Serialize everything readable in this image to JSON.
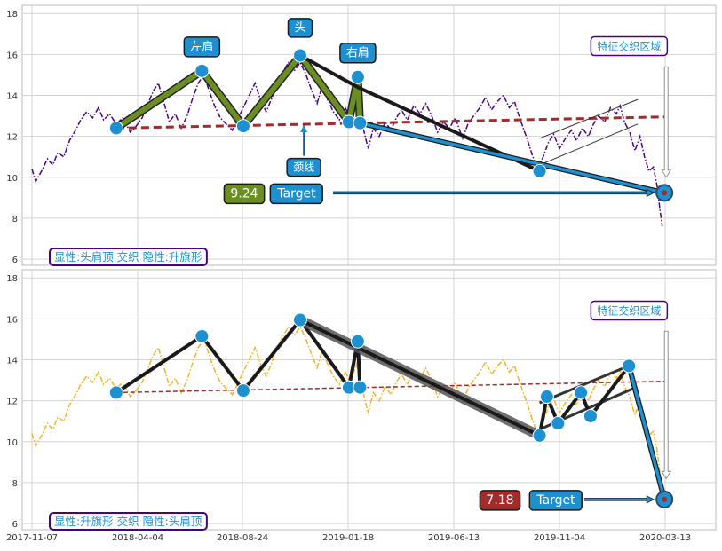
{
  "chart_data": [
    {
      "type": "line",
      "y_ticks": [
        6,
        8,
        10,
        12,
        14,
        16,
        18
      ],
      "ylim": [
        5.7,
        18.4
      ],
      "xlim": [
        "2017-11-07",
        "2020-03-28"
      ],
      "grid": true,
      "price_color": "#4B0082",
      "price_style": "dash-dot",
      "price_series": [
        {
          "x": "2017-11-07",
          "y": 10.4
        },
        {
          "x": "2017-11-12",
          "y": 9.8
        },
        {
          "x": "2017-11-20",
          "y": 10.3
        },
        {
          "x": "2017-11-28",
          "y": 10.9
        },
        {
          "x": "2017-12-05",
          "y": 10.6
        },
        {
          "x": "2017-12-12",
          "y": 11.2
        },
        {
          "x": "2017-12-20",
          "y": 11.0
        },
        {
          "x": "2017-12-28",
          "y": 11.8
        },
        {
          "x": "2018-01-05",
          "y": 12.3
        },
        {
          "x": "2018-01-12",
          "y": 12.8
        },
        {
          "x": "2018-01-20",
          "y": 13.2
        },
        {
          "x": "2018-01-28",
          "y": 12.9
        },
        {
          "x": "2018-02-05",
          "y": 13.4
        },
        {
          "x": "2018-02-12",
          "y": 12.8
        },
        {
          "x": "2018-02-20",
          "y": 13.1
        },
        {
          "x": "2018-03-01",
          "y": 12.6
        },
        {
          "x": "2018-03-10",
          "y": 12.9
        },
        {
          "x": "2018-03-20",
          "y": 12.2
        },
        {
          "x": "2018-03-28",
          "y": 12.5
        },
        {
          "x": "2018-04-05",
          "y": 12.9
        },
        {
          "x": "2018-04-12",
          "y": 13.5
        },
        {
          "x": "2018-04-20",
          "y": 14.2
        },
        {
          "x": "2018-04-27",
          "y": 14.6
        },
        {
          "x": "2018-05-05",
          "y": 13.6
        },
        {
          "x": "2018-05-12",
          "y": 12.7
        },
        {
          "x": "2018-05-20",
          "y": 13.1
        },
        {
          "x": "2018-05-28",
          "y": 12.4
        },
        {
          "x": "2018-06-05",
          "y": 13.0
        },
        {
          "x": "2018-06-12",
          "y": 13.8
        },
        {
          "x": "2018-06-20",
          "y": 14.6
        },
        {
          "x": "2018-06-28",
          "y": 15.0
        },
        {
          "x": "2018-07-05",
          "y": 14.2
        },
        {
          "x": "2018-07-12",
          "y": 13.5
        },
        {
          "x": "2018-07-20",
          "y": 12.9
        },
        {
          "x": "2018-07-28",
          "y": 12.6
        },
        {
          "x": "2018-08-05",
          "y": 12.3
        },
        {
          "x": "2018-08-12",
          "y": 12.8
        },
        {
          "x": "2018-08-20",
          "y": 13.4
        },
        {
          "x": "2018-08-28",
          "y": 14.0
        },
        {
          "x": "2018-09-05",
          "y": 14.6
        },
        {
          "x": "2018-09-12",
          "y": 13.8
        },
        {
          "x": "2018-09-20",
          "y": 13.2
        },
        {
          "x": "2018-09-28",
          "y": 13.9
        },
        {
          "x": "2018-10-05",
          "y": 14.6
        },
        {
          "x": "2018-10-12",
          "y": 15.1
        },
        {
          "x": "2018-10-20",
          "y": 15.6
        },
        {
          "x": "2018-10-28",
          "y": 15.2
        },
        {
          "x": "2018-11-05",
          "y": 15.6
        },
        {
          "x": "2018-11-12",
          "y": 15.1
        },
        {
          "x": "2018-11-20",
          "y": 14.3
        },
        {
          "x": "2018-11-28",
          "y": 13.6
        },
        {
          "x": "2018-12-05",
          "y": 14.5
        },
        {
          "x": "2018-12-12",
          "y": 13.8
        },
        {
          "x": "2018-12-20",
          "y": 13.2
        },
        {
          "x": "2018-12-28",
          "y": 12.8
        },
        {
          "x": "2019-01-05",
          "y": 13.4
        },
        {
          "x": "2019-01-12",
          "y": 12.9
        },
        {
          "x": "2019-01-20",
          "y": 13.8
        },
        {
          "x": "2019-01-28",
          "y": 12.6
        },
        {
          "x": "2019-02-05",
          "y": 11.4
        },
        {
          "x": "2019-02-12",
          "y": 12.4
        },
        {
          "x": "2019-02-20",
          "y": 12.0
        },
        {
          "x": "2019-02-28",
          "y": 12.7
        },
        {
          "x": "2019-03-08",
          "y": 12.3
        },
        {
          "x": "2019-03-15",
          "y": 12.9
        },
        {
          "x": "2019-03-22",
          "y": 13.3
        },
        {
          "x": "2019-03-30",
          "y": 12.8
        },
        {
          "x": "2019-04-08",
          "y": 13.5
        },
        {
          "x": "2019-04-16",
          "y": 13.1
        },
        {
          "x": "2019-04-24",
          "y": 13.6
        },
        {
          "x": "2019-05-02",
          "y": 13.0
        },
        {
          "x": "2019-05-10",
          "y": 12.2
        },
        {
          "x": "2019-05-18",
          "y": 12.7
        },
        {
          "x": "2019-05-26",
          "y": 12.4
        },
        {
          "x": "2019-06-03",
          "y": 12.9
        },
        {
          "x": "2019-06-13",
          "y": 11.9
        },
        {
          "x": "2019-06-20",
          "y": 12.6
        },
        {
          "x": "2019-06-28",
          "y": 13.0
        },
        {
          "x": "2019-07-06",
          "y": 13.4
        },
        {
          "x": "2019-07-14",
          "y": 13.9
        },
        {
          "x": "2019-07-22",
          "y": 13.3
        },
        {
          "x": "2019-07-30",
          "y": 13.7
        },
        {
          "x": "2019-08-07",
          "y": 14.0
        },
        {
          "x": "2019-08-15",
          "y": 13.4
        },
        {
          "x": "2019-08-22",
          "y": 13.7
        },
        {
          "x": "2019-08-30",
          "y": 12.8
        },
        {
          "x": "2019-09-07",
          "y": 12.0
        },
        {
          "x": "2019-09-15",
          "y": 11.1
        },
        {
          "x": "2019-09-22",
          "y": 10.4
        },
        {
          "x": "2019-09-30",
          "y": 11.0
        },
        {
          "x": "2019-10-07",
          "y": 11.7
        },
        {
          "x": "2019-10-14",
          "y": 12.1
        },
        {
          "x": "2019-10-22",
          "y": 11.4
        },
        {
          "x": "2019-10-30",
          "y": 11.9
        },
        {
          "x": "2019-11-07",
          "y": 12.3
        },
        {
          "x": "2019-11-14",
          "y": 11.8
        },
        {
          "x": "2019-11-22",
          "y": 12.4
        },
        {
          "x": "2019-11-30",
          "y": 12.0
        },
        {
          "x": "2019-12-07",
          "y": 12.6
        },
        {
          "x": "2019-12-14",
          "y": 13.0
        },
        {
          "x": "2019-12-22",
          "y": 12.7
        },
        {
          "x": "2019-12-30",
          "y": 13.4
        },
        {
          "x": "2020-01-07",
          "y": 13.1
        },
        {
          "x": "2020-01-12",
          "y": 13.5
        },
        {
          "x": "2020-01-18",
          "y": 12.7
        },
        {
          "x": "2020-01-25",
          "y": 12.2
        },
        {
          "x": "2020-02-01",
          "y": 11.3
        },
        {
          "x": "2020-02-08",
          "y": 12.0
        },
        {
          "x": "2020-02-14",
          "y": 11.0
        },
        {
          "x": "2020-02-20",
          "y": 10.3
        },
        {
          "x": "2020-02-26",
          "y": 10.5
        },
        {
          "x": "2020-03-02",
          "y": 9.6
        },
        {
          "x": "2020-03-06",
          "y": 8.4
        },
        {
          "x": "2020-03-09",
          "y": 7.6
        }
      ],
      "neckline": {
        "color": "#A52A2A",
        "points": [
          {
            "x": "2018-03-01",
            "y": 12.4
          },
          {
            "x": "2020-03-12",
            "y": 12.95
          }
        ]
      },
      "pattern_points": [
        {
          "x": "2018-03-01",
          "y": 12.4
        },
        {
          "x": "2018-06-25",
          "y": 15.2
        },
        {
          "x": "2018-08-20",
          "y": 12.5
        },
        {
          "x": "2018-11-05",
          "y": 15.95
        },
        {
          "x": "2019-01-10",
          "y": 12.7
        },
        {
          "x": "2019-01-22",
          "y": 14.9
        },
        {
          "x": "2019-01-25",
          "y": 12.65
        }
      ],
      "pattern_color": "#6B8E23",
      "black_segments": [
        {
          "from": {
            "x": "2018-11-05",
            "y": 15.95
          },
          "to": {
            "x": "2019-01-22",
            "y": 14.4
          }
        },
        {
          "from": {
            "x": "2019-01-22",
            "y": 14.4
          },
          "to": {
            "x": "2019-09-25",
            "y": 10.3
          }
        }
      ],
      "flag_channel": [
        {
          "from": {
            "x": "2019-09-25",
            "y": 10.6
          },
          "to": {
            "x": "2020-02-05",
            "y": 12.6
          }
        },
        {
          "from": {
            "x": "2019-09-25",
            "y": 11.9
          },
          "to": {
            "x": "2020-02-05",
            "y": 13.8
          }
        }
      ],
      "extra_markers": [
        {
          "x": "2019-09-25",
          "y": 10.3
        }
      ],
      "projection": {
        "color": "#1E90D0",
        "from": {
          "x": "2019-01-25",
          "y": 12.65
        },
        "to": {
          "x": "2020-03-12",
          "y": 9.24
        }
      },
      "target_marker": {
        "x": "2020-03-12",
        "y": 9.24
      },
      "labels": {
        "left_shoulder": {
          "x": "2018-06-25",
          "y": 16.4,
          "text": "左肩"
        },
        "head": {
          "x": "2018-11-05",
          "y": 17.35,
          "text": "头"
        },
        "right_shoulder": {
          "x": "2019-01-22",
          "y": 16.1,
          "text": "右肩"
        },
        "neckline": {
          "x": "2018-11-10",
          "y": 10.5,
          "text": "颈线"
        },
        "zone": {
          "x": "2020-02-10",
          "y": 16.4,
          "text": "特征交织区域"
        }
      },
      "target_value": "9.24",
      "target_value_color": "#6B8E23",
      "target_label": "Target",
      "corner_text": "显性:头肩顶 交织 隐性:升旗形"
    },
    {
      "type": "line",
      "y_ticks": [
        6,
        8,
        10,
        12,
        14,
        16,
        18
      ],
      "ylim": [
        5.7,
        18.4
      ],
      "xlim": [
        "2017-11-07",
        "2020-03-28"
      ],
      "x_ticks": [
        "2017-11-07",
        "2018-04-04",
        "2018-08-24",
        "2019-01-18",
        "2019-06-13",
        "2019-11-04",
        "2020-03-13"
      ],
      "grid": true,
      "price_color": "#F0B429",
      "price_style": "dash-dot",
      "neckline": {
        "color": "#A52A2A",
        "points": [
          {
            "x": "2018-03-01",
            "y": 12.4
          },
          {
            "x": "2020-03-12",
            "y": 12.95
          }
        ]
      },
      "pattern_points": [
        {
          "x": "2018-03-01",
          "y": 12.4
        },
        {
          "x": "2018-06-25",
          "y": 15.15
        },
        {
          "x": "2018-08-20",
          "y": 12.5
        },
        {
          "x": "2018-11-05",
          "y": 15.95
        },
        {
          "x": "2019-01-10",
          "y": 12.65
        },
        {
          "x": "2019-01-22",
          "y": 14.9
        },
        {
          "x": "2019-01-25",
          "y": 12.65
        }
      ],
      "thick_segment": {
        "from": {
          "x": "2018-11-05",
          "y": 15.95
        },
        "to": {
          "x": "2019-09-25",
          "y": 10.3
        }
      },
      "flag_points": [
        {
          "x": "2019-09-25",
          "y": 10.3
        },
        {
          "x": "2019-10-05",
          "y": 12.2
        },
        {
          "x": "2019-10-20",
          "y": 10.9
        },
        {
          "x": "2019-11-20",
          "y": 12.4
        },
        {
          "x": "2019-12-03",
          "y": 11.25
        },
        {
          "x": "2020-01-24",
          "y": 13.7
        }
      ],
      "flag_channel": [
        {
          "from": {
            "x": "2019-09-25",
            "y": 10.6
          },
          "to": {
            "x": "2020-01-30",
            "y": 12.6
          }
        },
        {
          "from": {
            "x": "2019-09-25",
            "y": 11.9
          },
          "to": {
            "x": "2020-01-30",
            "y": 13.8
          }
        }
      ],
      "projection": {
        "color": "#1E90D0",
        "from": {
          "x": "2020-01-24",
          "y": 13.7
        },
        "to": {
          "x": "2020-03-12",
          "y": 7.18
        }
      },
      "target_marker": {
        "x": "2020-03-12",
        "y": 7.18
      },
      "labels": {
        "zone": {
          "x": "2020-02-10",
          "y": 16.4,
          "text": "特征交织区域"
        }
      },
      "target_value": "7.18",
      "target_value_color": "#A52A2A",
      "target_label": "Target",
      "corner_text": "显性:升旗形 交织 隐性:头肩顶"
    }
  ]
}
